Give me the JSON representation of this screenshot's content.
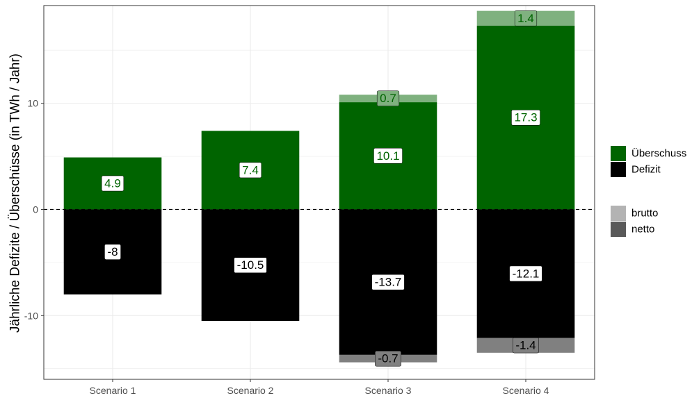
{
  "chart_data": {
    "type": "bar",
    "stacked": true,
    "categories": [
      "Scenario 1",
      "Scenario 2",
      "Scenario 3",
      "Scenario 4"
    ],
    "ylabel": "Jährliche Defizite / Überschüsse (in TWh / Jahr)",
    "xlabel": "",
    "ylim": [
      -16.0,
      19.2
    ],
    "yticks": [
      -10,
      0,
      10
    ],
    "ytick_labels": [
      "-10",
      "0",
      "10"
    ],
    "reference_line": {
      "y": 0,
      "style": "dashed"
    },
    "grid": true,
    "legend_position": "right",
    "series": [
      {
        "name": "Überschuss",
        "kind": "netto",
        "values": [
          4.9,
          7.4,
          10.1,
          17.3
        ],
        "labels": [
          "4.9",
          "7.4",
          "10.1",
          "17.3"
        ]
      },
      {
        "name": "Überschuss",
        "kind": "brutto",
        "values": [
          0,
          0,
          0.7,
          1.4
        ],
        "labels": [
          "",
          "",
          "0.7",
          "1.4"
        ]
      },
      {
        "name": "Defizit",
        "kind": "netto",
        "values": [
          -8,
          -10.5,
          -13.7,
          -12.1
        ],
        "labels": [
          "-8",
          "-10.5",
          "-13.7",
          "-12.1"
        ]
      },
      {
        "name": "Defizit",
        "kind": "brutto",
        "values": [
          0,
          0,
          -0.7,
          -1.4
        ],
        "labels": [
          "",
          "",
          "-0.7",
          "-1.4"
        ]
      }
    ],
    "legend": {
      "fill": [
        {
          "label": "Überschuss",
          "color": "#006400"
        },
        {
          "label": "Defizit",
          "color": "#000000"
        }
      ],
      "alpha": [
        {
          "label": "brutto",
          "color": "#b3b3b3"
        },
        {
          "label": "netto",
          "color": "#595959"
        }
      ]
    },
    "colors": {
      "ueberschuss": "#006400",
      "ueberschuss_brutto": "#7fb17f",
      "defizit": "#000000",
      "defizit_brutto": "#808080",
      "grid": "#ebebeb",
      "panel_border": "#333333"
    }
  }
}
